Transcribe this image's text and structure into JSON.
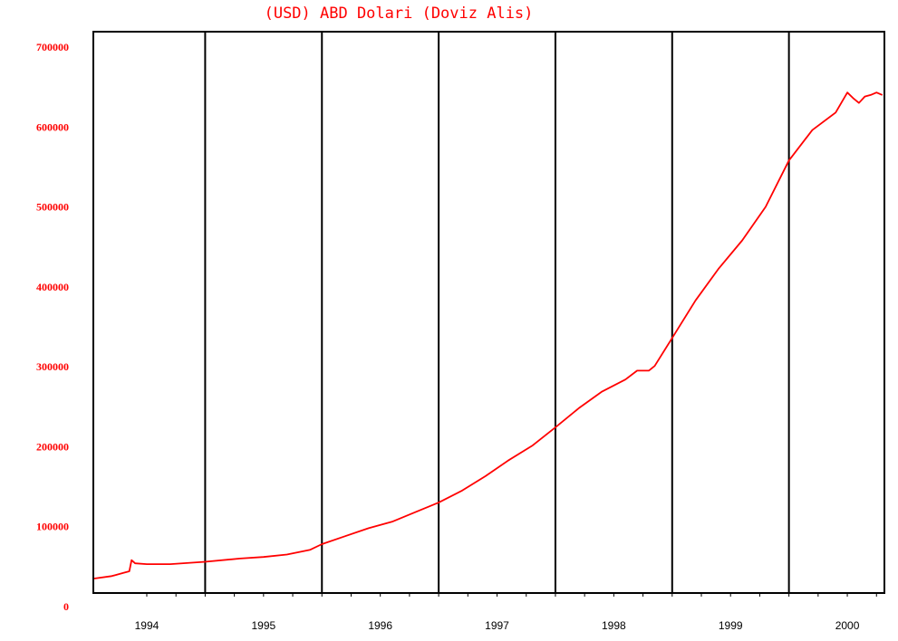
{
  "chart_data": {
    "type": "line",
    "title": "(USD) ABD Dolari  (Doviz Alis)",
    "xlabel": "",
    "ylabel": "",
    "ylim": [
      0,
      700000
    ],
    "yticks": [
      "0",
      "100000",
      "200000",
      "300000",
      "400000",
      "500000",
      "600000",
      "700000"
    ],
    "xlim": [
      1993.55,
      2000.31
    ],
    "xticks": [
      {
        "label": "1994",
        "x": 1994.0
      },
      {
        "label": "1995",
        "x": 1995.0
      },
      {
        "label": "1996",
        "x": 1996.0
      },
      {
        "label": "1997",
        "x": 1997.0
      },
      {
        "label": "1998",
        "x": 1998.0
      },
      {
        "label": "1999",
        "x": 1999.0
      },
      {
        "label": "2000",
        "x": 2000.0
      }
    ],
    "year_boundaries": [
      1994.5,
      1995.5,
      1996.5,
      1997.5,
      1998.5,
      1999.5
    ],
    "grid": false,
    "series_color": "#ff0000",
    "series": [
      {
        "x": [
          1993.55,
          1993.7,
          1993.8,
          1993.85,
          1993.87,
          1993.9,
          1994.0,
          1994.2,
          1994.5,
          1994.8,
          1995.0,
          1995.2,
          1995.4,
          1995.5,
          1995.7,
          1995.9,
          1996.1,
          1996.3,
          1996.5,
          1996.7,
          1996.9,
          1997.1,
          1997.3,
          1997.5,
          1997.7,
          1997.9,
          1998.1,
          1998.2,
          1998.3,
          1998.35,
          1998.5,
          1998.7,
          1998.9,
          1999.1,
          1999.3,
          1999.5,
          1999.7,
          1999.9,
          2000.0,
          2000.05,
          2000.1,
          2000.15,
          2000.2,
          2000.25,
          2000.3
        ],
        "y": [
          17000,
          20000,
          24000,
          26000,
          40000,
          36000,
          35000,
          35000,
          38000,
          42000,
          44000,
          47000,
          53000,
          60000,
          70000,
          80000,
          88000,
          100000,
          112000,
          127000,
          145000,
          165000,
          183000,
          206000,
          230000,
          251000,
          266000,
          277000,
          277000,
          283000,
          318000,
          365000,
          405000,
          440000,
          482000,
          540000,
          578000,
          600000,
          625000,
          618000,
          612000,
          620000,
          622000,
          625000,
          622000
        ]
      }
    ]
  }
}
